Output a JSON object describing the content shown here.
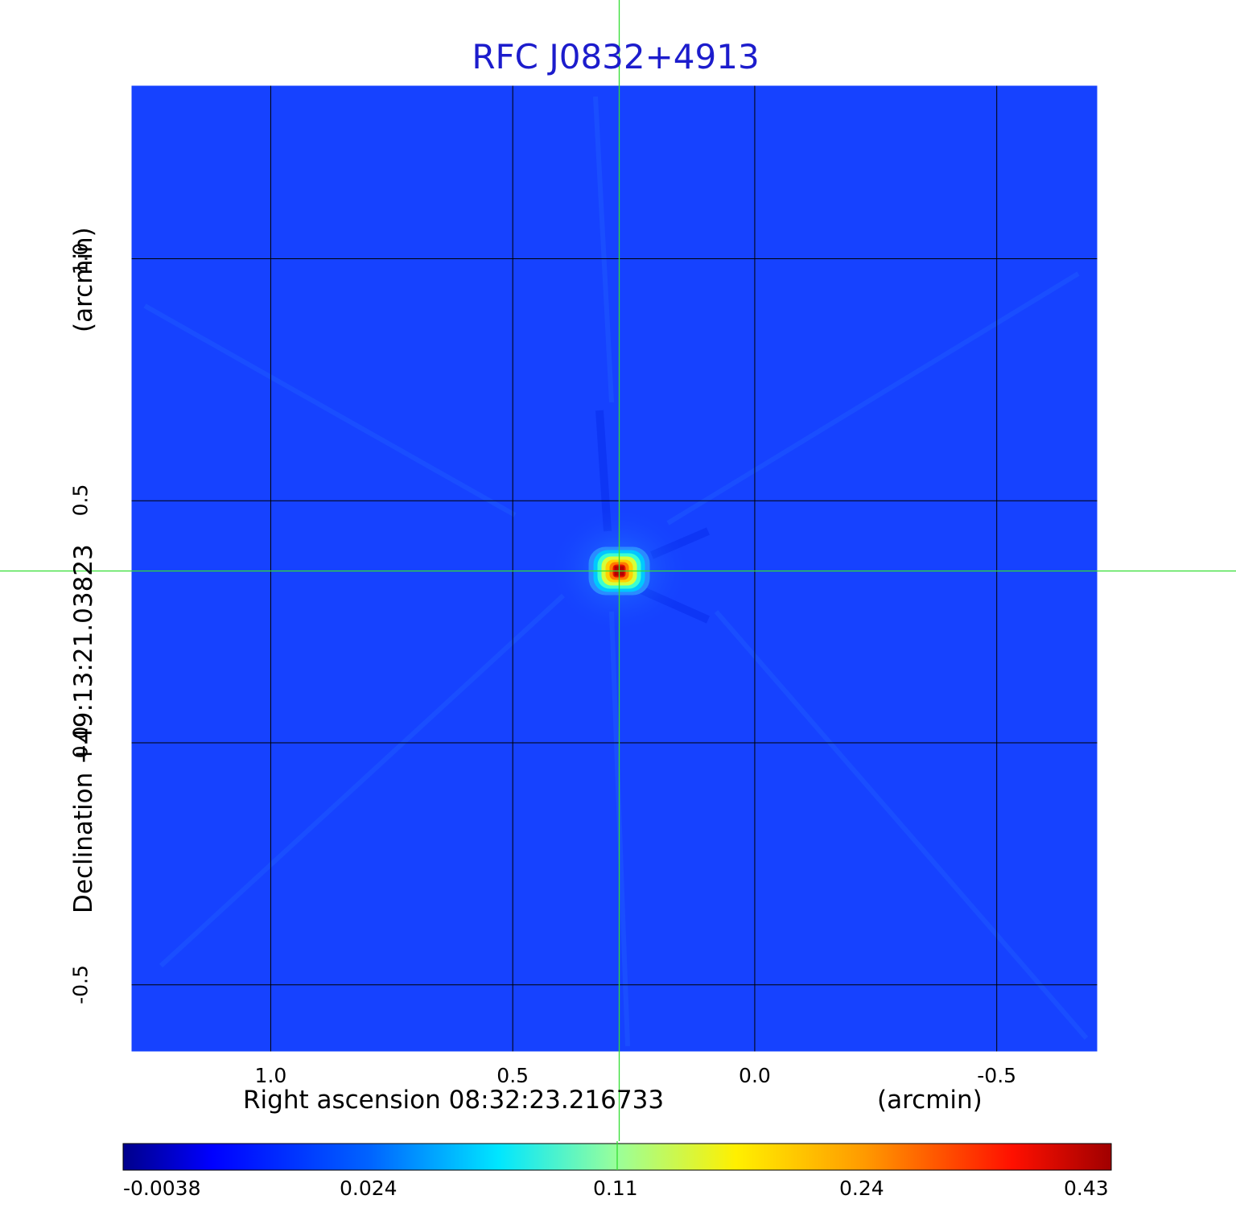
{
  "chart_data": {
    "type": "heatmap",
    "title": "RFC J0832+4913",
    "xlabel": "Right ascension  08:32:23.216733",
    "xunit": "(arcmin)",
    "ylabel": "Declination  +49:13:21.03823",
    "yunit": "(arcmin)",
    "xlim": [
      1.29,
      -0.71
    ],
    "ylim": [
      -0.64,
      1.36
    ],
    "x_ticks": [
      "1.0",
      "0.5",
      "0.0",
      "-0.5"
    ],
    "x_tick_values": [
      1.0,
      0.5,
      0.0,
      -0.5
    ],
    "y_ticks": [
      "1.0",
      "0.5",
      "0.0",
      "-0.5"
    ],
    "y_tick_values": [
      1.0,
      0.5,
      0.0,
      -0.5
    ],
    "grid": true,
    "colormap": "jet",
    "colorbar_ticks": [
      "-0.0038",
      "0.024",
      "0.11",
      "0.24",
      "0.43"
    ],
    "colorbar_range": [
      -0.0038,
      0.43
    ],
    "source_peak": {
      "x": 0.28,
      "y": 0.355,
      "value": 0.43
    },
    "crosshair": {
      "x": 0.28,
      "y": 0.355,
      "color": "#33dd33"
    },
    "colors": {
      "background": "#1540ff",
      "grid": "#000000",
      "title": "#1c1ccc"
    }
  }
}
